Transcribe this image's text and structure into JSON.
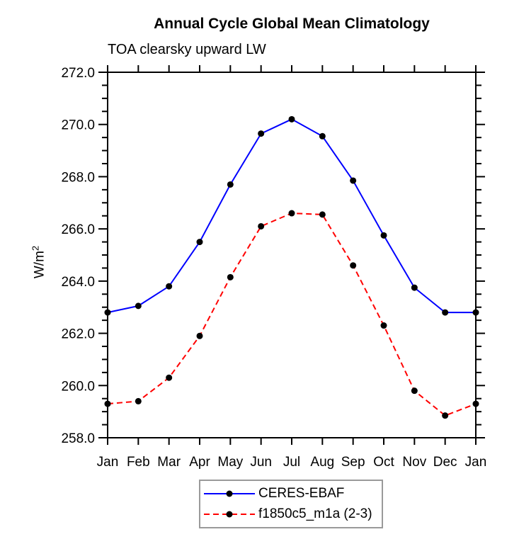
{
  "page": {
    "background": "#ffffff"
  },
  "chart_data": {
    "type": "line",
    "title": "Annual Cycle Global Mean Climatology",
    "subtitle": "TOA clearsky upward LW",
    "ylabel": "W/m²",
    "ylabel_base": "W/m",
    "ylabel_sup": "2",
    "xlabel": "",
    "x_categories": [
      "Jan",
      "Feb",
      "Mar",
      "Apr",
      "May",
      "Jun",
      "Jul",
      "Aug",
      "Sep",
      "Oct",
      "Nov",
      "Dec",
      "Jan"
    ],
    "ylim": [
      258.0,
      272.0
    ],
    "y_major_step": 2.0,
    "y_minor_step": 0.5,
    "y_tick_labels": [
      "258.0",
      "260.0",
      "262.0",
      "264.0",
      "266.0",
      "268.0",
      "270.0",
      "272.0"
    ],
    "grid": false,
    "legend_position": "bottom-center",
    "series": [
      {
        "name": "CERES-EBAF",
        "color": "#0000ff",
        "line_style": "solid",
        "marker": "filled-circle",
        "marker_color": "#000000",
        "values": [
          262.8,
          263.05,
          263.8,
          265.5,
          267.7,
          269.65,
          270.2,
          269.55,
          267.85,
          265.75,
          263.75,
          262.8,
          262.8
        ]
      },
      {
        "name": "f1850c5_m1a (2-3)",
        "color": "#ff0000",
        "line_style": "dashed",
        "marker": "filled-circle",
        "marker_color": "#000000",
        "values": [
          259.3,
          259.4,
          260.3,
          261.9,
          264.15,
          266.1,
          266.6,
          266.55,
          264.6,
          262.3,
          259.8,
          258.85,
          259.3
        ]
      }
    ],
    "colors": {
      "axis": "#000000",
      "text": "#000000",
      "legend_border": "#9a9a9a"
    }
  }
}
